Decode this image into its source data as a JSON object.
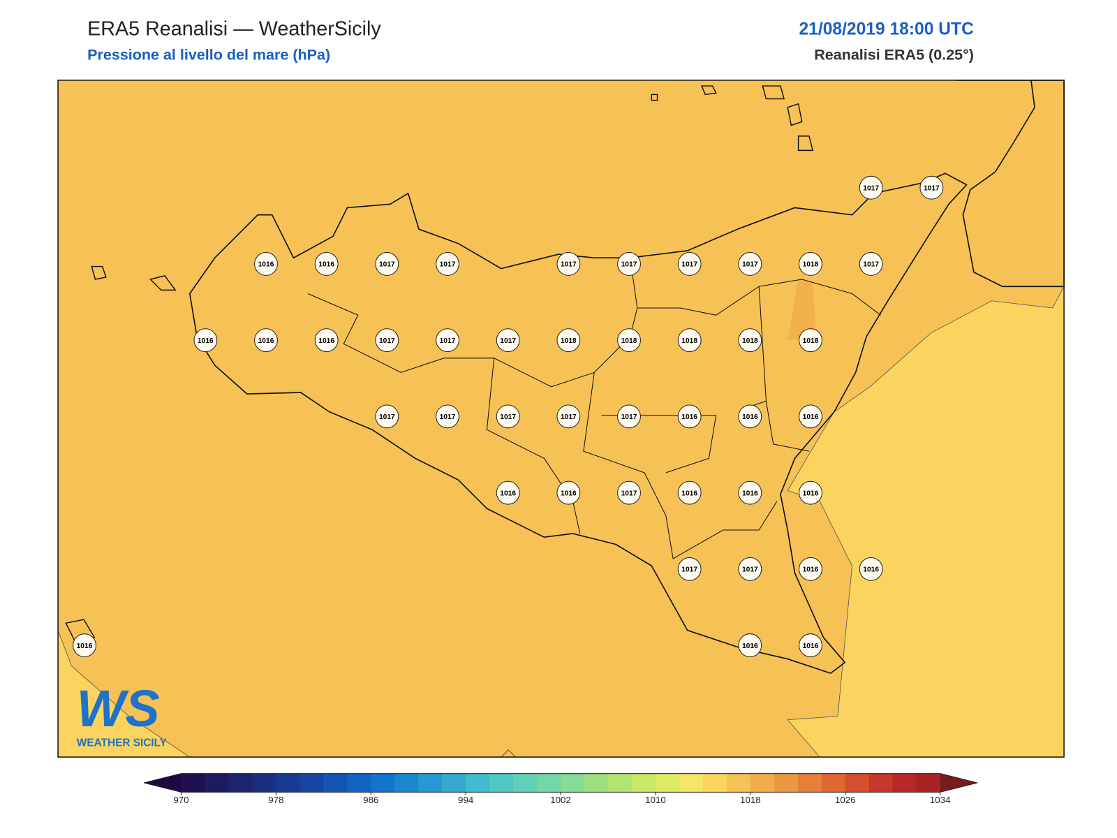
{
  "header": {
    "title": "ERA5 Reanalisi — WeatherSicily",
    "subtitle": "Pressione al livello del mare (hPa)",
    "datetime": "21/08/2019 18:00 UTC",
    "source": "Reanalisi ERA5 (0.25°)"
  },
  "logo": {
    "mark": "WS",
    "text": "WEATHER SICILY"
  },
  "stations": {
    "rows": [
      [
        null,
        null,
        null,
        null,
        null,
        null,
        null,
        null,
        null,
        null,
        null,
        null,
        null,
        1017,
        1017
      ],
      [
        null,
        null,
        null,
        1016,
        1016,
        1017,
        1017,
        null,
        1017,
        1017,
        1017,
        1017,
        1018,
        1017,
        null
      ],
      [
        null,
        null,
        1016,
        1016,
        1016,
        1017,
        1017,
        1017,
        1018,
        1018,
        1018,
        1018,
        1018,
        null,
        null
      ],
      [
        null,
        null,
        null,
        null,
        null,
        1017,
        1017,
        1017,
        1017,
        1017,
        1016,
        1016,
        1016,
        null,
        null
      ],
      [
        null,
        null,
        null,
        null,
        null,
        null,
        null,
        1016,
        1016,
        1017,
        1016,
        1016,
        1016,
        null,
        null
      ],
      [
        null,
        null,
        null,
        null,
        null,
        null,
        null,
        null,
        null,
        null,
        1017,
        1017,
        1016,
        1016,
        null
      ],
      [
        1016,
        null,
        null,
        null,
        null,
        null,
        null,
        null,
        null,
        null,
        null,
        1016,
        1016,
        null,
        null
      ]
    ]
  },
  "colorbar": {
    "lim": [
      970,
      1034
    ],
    "ticks": [
      970,
      978,
      986,
      994,
      1002,
      1010,
      1018,
      1026,
      1034
    ],
    "colors": [
      "#201050",
      "#1e1a5e",
      "#1c2470",
      "#1a2e82",
      "#183a92",
      "#1646a2",
      "#1454b2",
      "#1264c2",
      "#1274cc",
      "#1a86d0",
      "#2898d2",
      "#34aad0",
      "#40bcce",
      "#50c8c6",
      "#60d0b8",
      "#72d6a6",
      "#86dc94",
      "#9ce080",
      "#b2e470",
      "#c8e866",
      "#dcea66",
      "#f6e46a",
      "#fbd45f",
      "#f6c155",
      "#f1ad4a",
      "#ec9840",
      "#e68038",
      "#de6830",
      "#d4502c",
      "#c8382a",
      "#b82828",
      "#a82424"
    ],
    "under": "#1a0a40",
    "over": "#7a1a1a"
  }
}
